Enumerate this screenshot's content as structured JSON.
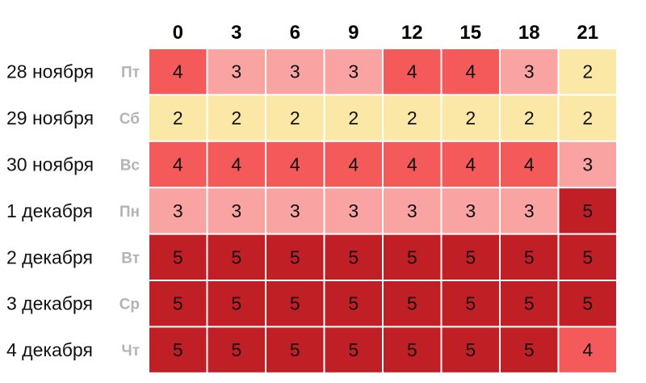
{
  "chart_data": {
    "type": "heatmap",
    "columns": [
      "0",
      "3",
      "6",
      "9",
      "12",
      "15",
      "18",
      "21"
    ],
    "rows": [
      {
        "date": "28 ноября",
        "day": "Пт",
        "values": [
          4,
          3,
          3,
          3,
          4,
          4,
          3,
          2
        ]
      },
      {
        "date": "29 ноября",
        "day": "Сб",
        "values": [
          2,
          2,
          2,
          2,
          2,
          2,
          2,
          2
        ]
      },
      {
        "date": "30 ноября",
        "day": "Вс",
        "values": [
          4,
          4,
          4,
          4,
          4,
          4,
          4,
          3
        ]
      },
      {
        "date": "1 декабря",
        "day": "Пн",
        "values": [
          3,
          3,
          3,
          3,
          3,
          3,
          3,
          5
        ]
      },
      {
        "date": "2 декабря",
        "day": "Вт",
        "values": [
          5,
          5,
          5,
          5,
          5,
          5,
          5,
          5
        ]
      },
      {
        "date": "3 декабря",
        "day": "Ср",
        "values": [
          5,
          5,
          5,
          5,
          5,
          5,
          5,
          5
        ]
      },
      {
        "date": "4 декабря",
        "day": "Чт",
        "values": [
          5,
          5,
          5,
          5,
          5,
          5,
          5,
          4
        ]
      }
    ],
    "color_scale": {
      "2": "#fbe8a6",
      "3": "#f9a3a3",
      "4": "#f45a5a",
      "5": "#c01f26"
    }
  }
}
